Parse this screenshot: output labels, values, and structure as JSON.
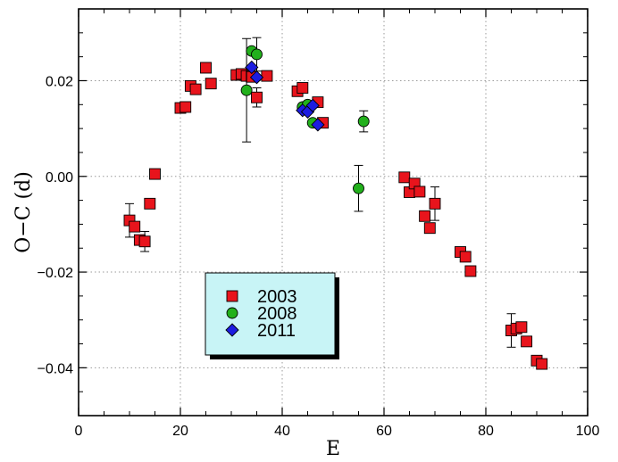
{
  "chart_data": {
    "type": "scatter",
    "title": "",
    "xlabel": "E",
    "ylabel": "O−C (d)",
    "xlim": [
      0,
      100
    ],
    "ylim": [
      -0.05,
      0.035
    ],
    "x_ticks": [
      0,
      20,
      40,
      60,
      80,
      100
    ],
    "y_ticks": [
      -0.04,
      -0.02,
      0.0,
      0.02
    ],
    "x_tick_labels": [
      "0",
      "20",
      "40",
      "60",
      "80",
      "100"
    ],
    "y_tick_labels": [
      "−0.04",
      "−0.02",
      "0.00",
      "0.02"
    ],
    "grid": true,
    "legend_position": "lower-center",
    "series": [
      {
        "name": "2003",
        "marker": "square",
        "color": "#e8141c",
        "points": [
          {
            "x": 10,
            "y": -0.0092,
            "err": 0.0035
          },
          {
            "x": 11,
            "y": -0.0105
          },
          {
            "x": 12,
            "y": -0.0133
          },
          {
            "x": 13,
            "y": -0.0136,
            "err": 0.0021
          },
          {
            "x": 14,
            "y": -0.0057
          },
          {
            "x": 15,
            "y": 0.0005
          },
          {
            "x": 20,
            "y": 0.0143
          },
          {
            "x": 21,
            "y": 0.0145
          },
          {
            "x": 22,
            "y": 0.0189
          },
          {
            "x": 23,
            "y": 0.0182
          },
          {
            "x": 25,
            "y": 0.0227
          },
          {
            "x": 26,
            "y": 0.0194
          },
          {
            "x": 31,
            "y": 0.0212
          },
          {
            "x": 32,
            "y": 0.0214
          },
          {
            "x": 33,
            "y": 0.021
          },
          {
            "x": 34,
            "y": 0.0208
          },
          {
            "x": 35,
            "y": 0.0165,
            "err": 0.002
          },
          {
            "x": 37,
            "y": 0.021
          },
          {
            "x": 43,
            "y": 0.0178
          },
          {
            "x": 44,
            "y": 0.0185
          },
          {
            "x": 47,
            "y": 0.0155
          },
          {
            "x": 48,
            "y": 0.0112
          },
          {
            "x": 64,
            "y": -0.0002
          },
          {
            "x": 65,
            "y": -0.0033
          },
          {
            "x": 66,
            "y": -0.0015
          },
          {
            "x": 67,
            "y": -0.0032
          },
          {
            "x": 68,
            "y": -0.0083
          },
          {
            "x": 69,
            "y": -0.0108
          },
          {
            "x": 70,
            "y": -0.0057,
            "err": 0.0035
          },
          {
            "x": 75,
            "y": -0.0158
          },
          {
            "x": 76,
            "y": -0.0168
          },
          {
            "x": 77,
            "y": -0.0198
          },
          {
            "x": 85,
            "y": -0.0322,
            "err": 0.0035
          },
          {
            "x": 86,
            "y": -0.0318
          },
          {
            "x": 87,
            "y": -0.0315
          },
          {
            "x": 88,
            "y": -0.0345
          },
          {
            "x": 90,
            "y": -0.0385
          },
          {
            "x": 91,
            "y": -0.0392
          }
        ]
      },
      {
        "name": "2008",
        "marker": "circle",
        "color": "#22b01c",
        "points": [
          {
            "x": 33,
            "y": 0.018,
            "err": 0.0108
          },
          {
            "x": 34,
            "y": 0.0262
          },
          {
            "x": 35,
            "y": 0.0255,
            "err": 0.0035
          },
          {
            "x": 44,
            "y": 0.0145
          },
          {
            "x": 45,
            "y": 0.015
          },
          {
            "x": 46,
            "y": 0.0112
          },
          {
            "x": 55,
            "y": -0.0025,
            "err": 0.0048
          },
          {
            "x": 56,
            "y": 0.0115,
            "err": 0.0022
          }
        ]
      },
      {
        "name": "2011",
        "marker": "diamond",
        "color": "#1c1ce0",
        "points": [
          {
            "x": 34,
            "y": 0.0228
          },
          {
            "x": 35,
            "y": 0.0207
          },
          {
            "x": 44,
            "y": 0.0138
          },
          {
            "x": 45,
            "y": 0.0135
          },
          {
            "x": 46,
            "y": 0.0148
          },
          {
            "x": 47,
            "y": 0.0108
          }
        ]
      }
    ],
    "legend_bg": "#c8f4f6"
  }
}
